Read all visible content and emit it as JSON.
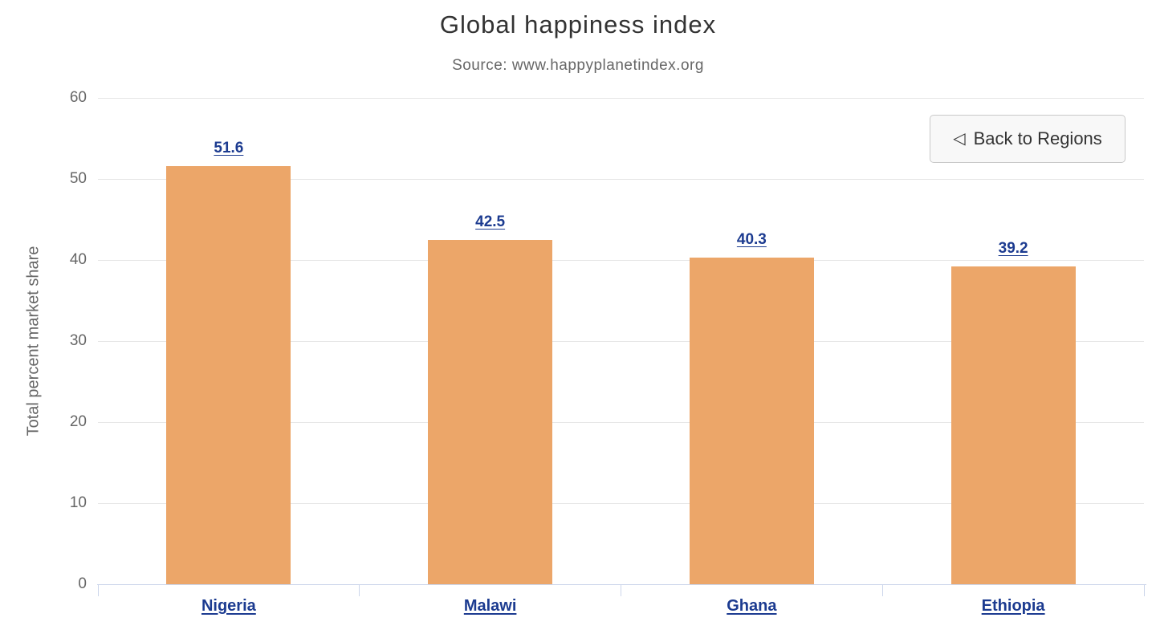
{
  "header": {
    "title": "Global happiness index",
    "subtitle": "Source: www.happyplanetindex.org"
  },
  "toolbar": {
    "back_button_icon": "◁",
    "back_button_label": "Back to Regions"
  },
  "chart_data": {
    "type": "bar",
    "title": "Global happiness index",
    "subtitle": "Source: www.happyplanetindex.org",
    "categories": [
      "Nigeria",
      "Malawi",
      "Ghana",
      "Ethiopia"
    ],
    "values": [
      51.6,
      42.5,
      40.3,
      39.2
    ],
    "data_labels": [
      "51.6",
      "42.5",
      "40.3",
      "39.2"
    ],
    "xlabel": "",
    "ylabel": "Total percent market share",
    "ylim": [
      0,
      60
    ],
    "yticks": [
      0,
      10,
      20,
      30,
      40,
      50,
      60
    ],
    "grid": true,
    "legend": false,
    "colors": {
      "bar": "#ECA669",
      "link_text": "#1c3b90",
      "grid_line": "#e6e6e6",
      "axis_line": "#ccd6eb",
      "title_text": "#333333",
      "muted_text": "#666666"
    }
  }
}
